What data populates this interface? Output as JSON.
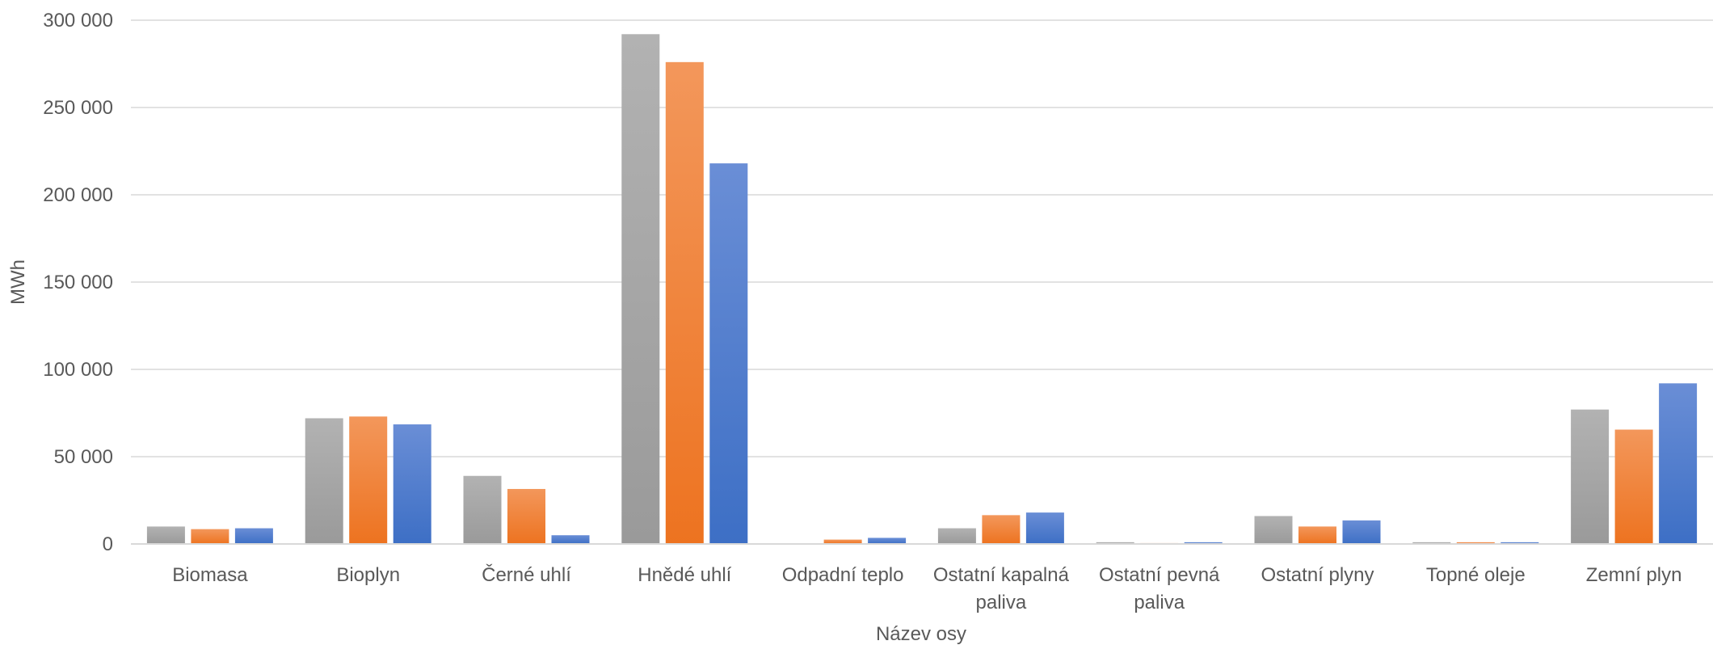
{
  "chart_data": {
    "type": "bar",
    "xlabel": "Název osy",
    "ylabel": "MWh",
    "ylim": [
      0,
      300000
    ],
    "yticks": [
      0,
      50000,
      100000,
      150000,
      200000,
      250000,
      300000
    ],
    "ytick_labels": [
      "0",
      "50 000",
      "100 000",
      "150 000",
      "200 000",
      "250 000",
      "300 000"
    ],
    "grid": true,
    "legend": "none",
    "categories": [
      [
        "Biomasa"
      ],
      [
        "Bioplyn"
      ],
      [
        "Černé uhlí"
      ],
      [
        "Hnědé uhlí"
      ],
      [
        "Odpadní teplo"
      ],
      [
        "Ostatní kapalná",
        "paliva"
      ],
      [
        "Ostatní pevná",
        "paliva"
      ],
      [
        "Ostatní plyny"
      ],
      [
        "Topné oleje"
      ],
      [
        "Zemní plyn"
      ]
    ],
    "series": [
      {
        "color": "#9a9a9a",
        "color_light": "#b2b2b2",
        "values": [
          10000,
          72000,
          39000,
          292000,
          0,
          9000,
          1000,
          16000,
          1000,
          77000
        ]
      },
      {
        "color": "#ed7320",
        "color_light": "#f3975b",
        "values": [
          8500,
          73000,
          31500,
          276000,
          2500,
          16500,
          500,
          10000,
          1000,
          65500
        ]
      },
      {
        "color": "#3d6fc5",
        "color_light": "#6a8ed6",
        "values": [
          9000,
          68500,
          5000,
          218000,
          3500,
          18000,
          1000,
          13500,
          1000,
          92000
        ]
      }
    ]
  }
}
